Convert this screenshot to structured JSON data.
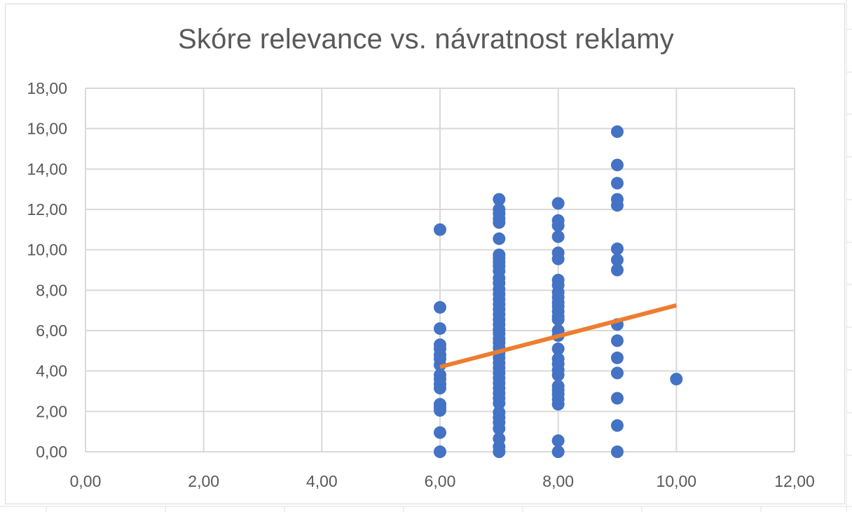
{
  "chart_data": {
    "type": "scatter",
    "title": "Skóre relevance vs. návratnost reklamy",
    "xlabel": "",
    "ylabel": "",
    "xlim": [
      0,
      12
    ],
    "ylim": [
      0,
      18
    ],
    "x_ticks": [
      "0,00",
      "2,00",
      "4,00",
      "6,00",
      "8,00",
      "10,00",
      "12,00"
    ],
    "y_ticks": [
      "0,00",
      "2,00",
      "4,00",
      "6,00",
      "8,00",
      "10,00",
      "12,00",
      "14,00",
      "16,00",
      "18,00"
    ],
    "grid": true,
    "legend": "none",
    "series": [
      {
        "color": "#4472c4",
        "points": [
          [
            6,
            11.0
          ],
          [
            6,
            7.15
          ],
          [
            6,
            6.1
          ],
          [
            6,
            5.3
          ],
          [
            6,
            5.1
          ],
          [
            6,
            4.8
          ],
          [
            6,
            4.6
          ],
          [
            6,
            4.3
          ],
          [
            6,
            3.8
          ],
          [
            6,
            3.6
          ],
          [
            6,
            3.35
          ],
          [
            6,
            3.15
          ],
          [
            6,
            2.35
          ],
          [
            6,
            2.2
          ],
          [
            6,
            2.05
          ],
          [
            6,
            0.95
          ],
          [
            6,
            0.0
          ],
          [
            7,
            12.5
          ],
          [
            7,
            12.0
          ],
          [
            7,
            11.8
          ],
          [
            7,
            11.55
          ],
          [
            7,
            11.35
          ],
          [
            7,
            10.55
          ],
          [
            7,
            9.75
          ],
          [
            7,
            9.6
          ],
          [
            7,
            9.4
          ],
          [
            7,
            9.2
          ],
          [
            7,
            8.95
          ],
          [
            7,
            8.6
          ],
          [
            7,
            8.35
          ],
          [
            7,
            8.05
          ],
          [
            7,
            7.8
          ],
          [
            7,
            7.55
          ],
          [
            7,
            7.3
          ],
          [
            7,
            7.05
          ],
          [
            7,
            6.8
          ],
          [
            7,
            6.55
          ],
          [
            7,
            6.3
          ],
          [
            7,
            6.05
          ],
          [
            7,
            5.85
          ],
          [
            7,
            5.6
          ],
          [
            7,
            5.4
          ],
          [
            7,
            5.15
          ],
          [
            7,
            4.9
          ],
          [
            7,
            4.65
          ],
          [
            7,
            4.4
          ],
          [
            7,
            4.15
          ],
          [
            7,
            3.9
          ],
          [
            7,
            3.65
          ],
          [
            7,
            3.4
          ],
          [
            7,
            3.15
          ],
          [
            7,
            2.9
          ],
          [
            7,
            2.65
          ],
          [
            7,
            2.4
          ],
          [
            7,
            1.95
          ],
          [
            7,
            1.7
          ],
          [
            7,
            1.45
          ],
          [
            7,
            1.15
          ],
          [
            7,
            0.65
          ],
          [
            7,
            0.25
          ],
          [
            7,
            0.0
          ],
          [
            8,
            12.3
          ],
          [
            8,
            11.45
          ],
          [
            8,
            11.2
          ],
          [
            8,
            10.65
          ],
          [
            8,
            9.85
          ],
          [
            8,
            9.55
          ],
          [
            8,
            8.5
          ],
          [
            8,
            8.25
          ],
          [
            8,
            7.9
          ],
          [
            8,
            7.65
          ],
          [
            8,
            7.4
          ],
          [
            8,
            7.2
          ],
          [
            8,
            6.95
          ],
          [
            8,
            6.7
          ],
          [
            8,
            6.55
          ],
          [
            8,
            6.0
          ],
          [
            8,
            5.75
          ],
          [
            8,
            5.1
          ],
          [
            8,
            4.6
          ],
          [
            8,
            4.35
          ],
          [
            8,
            4.05
          ],
          [
            8,
            3.8
          ],
          [
            8,
            3.25
          ],
          [
            8,
            3.05
          ],
          [
            8,
            2.85
          ],
          [
            8,
            2.6
          ],
          [
            8,
            2.35
          ],
          [
            8,
            0.55
          ],
          [
            8,
            0.0
          ],
          [
            9,
            15.85
          ],
          [
            9,
            14.2
          ],
          [
            9,
            13.3
          ],
          [
            9,
            12.5
          ],
          [
            9,
            12.2
          ],
          [
            9,
            10.05
          ],
          [
            9,
            9.5
          ],
          [
            9,
            9.0
          ],
          [
            9,
            6.3
          ],
          [
            9,
            5.5
          ],
          [
            9,
            4.65
          ],
          [
            9,
            3.9
          ],
          [
            9,
            2.65
          ],
          [
            9,
            1.3
          ],
          [
            9,
            0.0
          ],
          [
            10,
            3.6
          ]
        ]
      }
    ],
    "trendline": {
      "type": "linear",
      "color": "#ed7d31",
      "x": [
        6,
        10
      ],
      "y": [
        4.2,
        7.25
      ]
    }
  }
}
